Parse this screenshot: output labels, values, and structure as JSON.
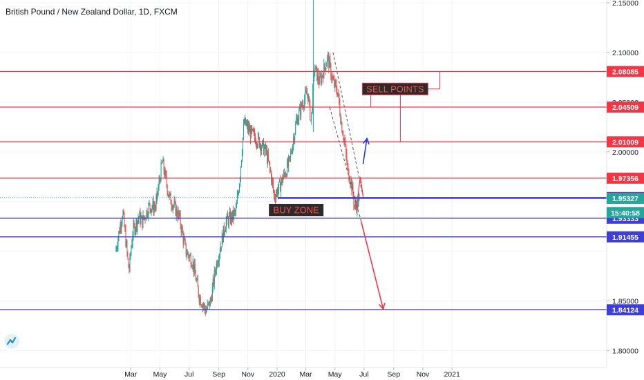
{
  "header": {
    "title": "British Pound / New Zealand Dollar, 1D, FXCM"
  },
  "colors": {
    "up": "#26a69a",
    "down": "#ef5350",
    "resistance": "#f23645",
    "support": "#3f3fd8",
    "current": "#9c27b0",
    "last_price": "#26a69a",
    "trend_dash": "#555555",
    "arrow_up": "#1e3ee8",
    "arrow_down": "#f23645"
  },
  "chart_data": {
    "type": "candlestick",
    "title": "British Pound / New Zealand Dollar, 1D, FXCM",
    "xlabel": "",
    "ylabel": "",
    "ylim": [
      1.78,
      2.16
    ],
    "x_ticks": [
      "Mar",
      "May",
      "Jul",
      "Sep",
      "Nov",
      "2020",
      "Mar",
      "May",
      "Jul",
      "Sep",
      "Nov",
      "2021"
    ],
    "y_ticks": [
      "2.15000",
      "2.10000",
      "2.05000",
      "2.00000",
      "1.85000",
      "1.80000"
    ],
    "grid": true,
    "price_series": [
      [
        "2019-01-28",
        1.9
      ],
      [
        "2019-02-12",
        1.94
      ],
      [
        "2019-02-25",
        1.88
      ],
      [
        "2019-03-05",
        1.92
      ],
      [
        "2019-03-18",
        1.935
      ],
      [
        "2019-03-25",
        1.93
      ],
      [
        "2019-04-08",
        1.945
      ],
      [
        "2019-04-22",
        1.945
      ],
      [
        "2019-05-01",
        1.975
      ],
      [
        "2019-05-06",
        1.99
      ],
      [
        "2019-05-20",
        1.955
      ],
      [
        "2019-06-10",
        1.935
      ],
      [
        "2019-06-24",
        1.9
      ],
      [
        "2019-07-08",
        1.89
      ],
      [
        "2019-07-22",
        1.855
      ],
      [
        "2019-08-05",
        1.84
      ],
      [
        "2019-08-15",
        1.85
      ],
      [
        "2019-08-26",
        1.885
      ],
      [
        "2019-09-16",
        1.93
      ],
      [
        "2019-09-30",
        1.935
      ],
      [
        "2019-10-07",
        1.94
      ],
      [
        "2019-10-15",
        1.975
      ],
      [
        "2019-10-24",
        2.03
      ],
      [
        "2019-11-05",
        2.02
      ],
      [
        "2019-11-25",
        2.01
      ],
      [
        "2019-12-09",
        2.0
      ],
      [
        "2019-12-20",
        1.975
      ],
      [
        "2019-12-26",
        1.955
      ],
      [
        "2020-01-06",
        1.965
      ],
      [
        "2020-01-27",
        1.99
      ],
      [
        "2020-02-10",
        2.03
      ],
      [
        "2020-02-24",
        2.05
      ],
      [
        "2020-03-05",
        2.06
      ],
      [
        "2020-03-12",
        2.03
      ],
      [
        "2020-03-19",
        2.085
      ],
      [
        "2020-03-30",
        2.07
      ],
      [
        "2020-04-06",
        2.08
      ],
      [
        "2020-04-16",
        2.095
      ],
      [
        "2020-04-27",
        2.07
      ],
      [
        "2020-05-07",
        2.06
      ],
      [
        "2020-05-14",
        2.03
      ],
      [
        "2020-05-21",
        2.01
      ],
      [
        "2020-05-28",
        1.98
      ],
      [
        "2020-06-04",
        1.97
      ],
      [
        "2020-06-11",
        1.945
      ],
      [
        "2020-06-17",
        1.948
      ],
      [
        "2020-06-22",
        1.953
      ]
    ],
    "horizontal_levels": [
      {
        "price": 2.08085,
        "label": "2.08085",
        "kind": "resistance"
      },
      {
        "price": 2.04509,
        "label": "2.04509",
        "kind": "resistance"
      },
      {
        "price": 2.01009,
        "label": "2.01009",
        "kind": "resistance"
      },
      {
        "price": 1.97356,
        "label": "1.97356",
        "kind": "resistance"
      },
      {
        "price": 1.95417,
        "label": "1.95417",
        "kind": "current"
      },
      {
        "price": 1.9533,
        "label": "",
        "kind": "support"
      },
      {
        "price": 1.93333,
        "label": "1.93333",
        "kind": "support"
      },
      {
        "price": 1.91455,
        "label": "1.91455",
        "kind": "support"
      },
      {
        "price": 1.84124,
        "label": "1.84124",
        "kind": "support"
      }
    ],
    "price_labels": [
      {
        "price": 1.95327,
        "text": "1.95327",
        "kind": "last_price"
      },
      {
        "price": 1.9389,
        "text": "15:40:58",
        "kind": "countdown"
      }
    ],
    "annotations": [
      {
        "text": "SELL POINTS",
        "date": "2020-09-04",
        "price": 2.0633
      },
      {
        "text": "BUY ZONE",
        "date": "2020-02-10",
        "price": 1.9415
      }
    ],
    "trend_lines": [
      {
        "from": [
          "2020-04-27",
          2.1
        ],
        "to": [
          "2020-06-29",
          1.955
        ]
      },
      {
        "from": [
          "2020-04-20",
          2.045
        ],
        "to": [
          "2020-06-25",
          1.93
        ]
      }
    ],
    "arrows": [
      {
        "from": [
          "2020-06-29",
          1.988
        ],
        "to": [
          "2020-07-07",
          2.0135
        ],
        "kind": "up"
      },
      {
        "from": [
          "2020-06-25",
          1.93
        ],
        "to": [
          "2020-08-10",
          1.842
        ],
        "kind": "down"
      }
    ]
  }
}
